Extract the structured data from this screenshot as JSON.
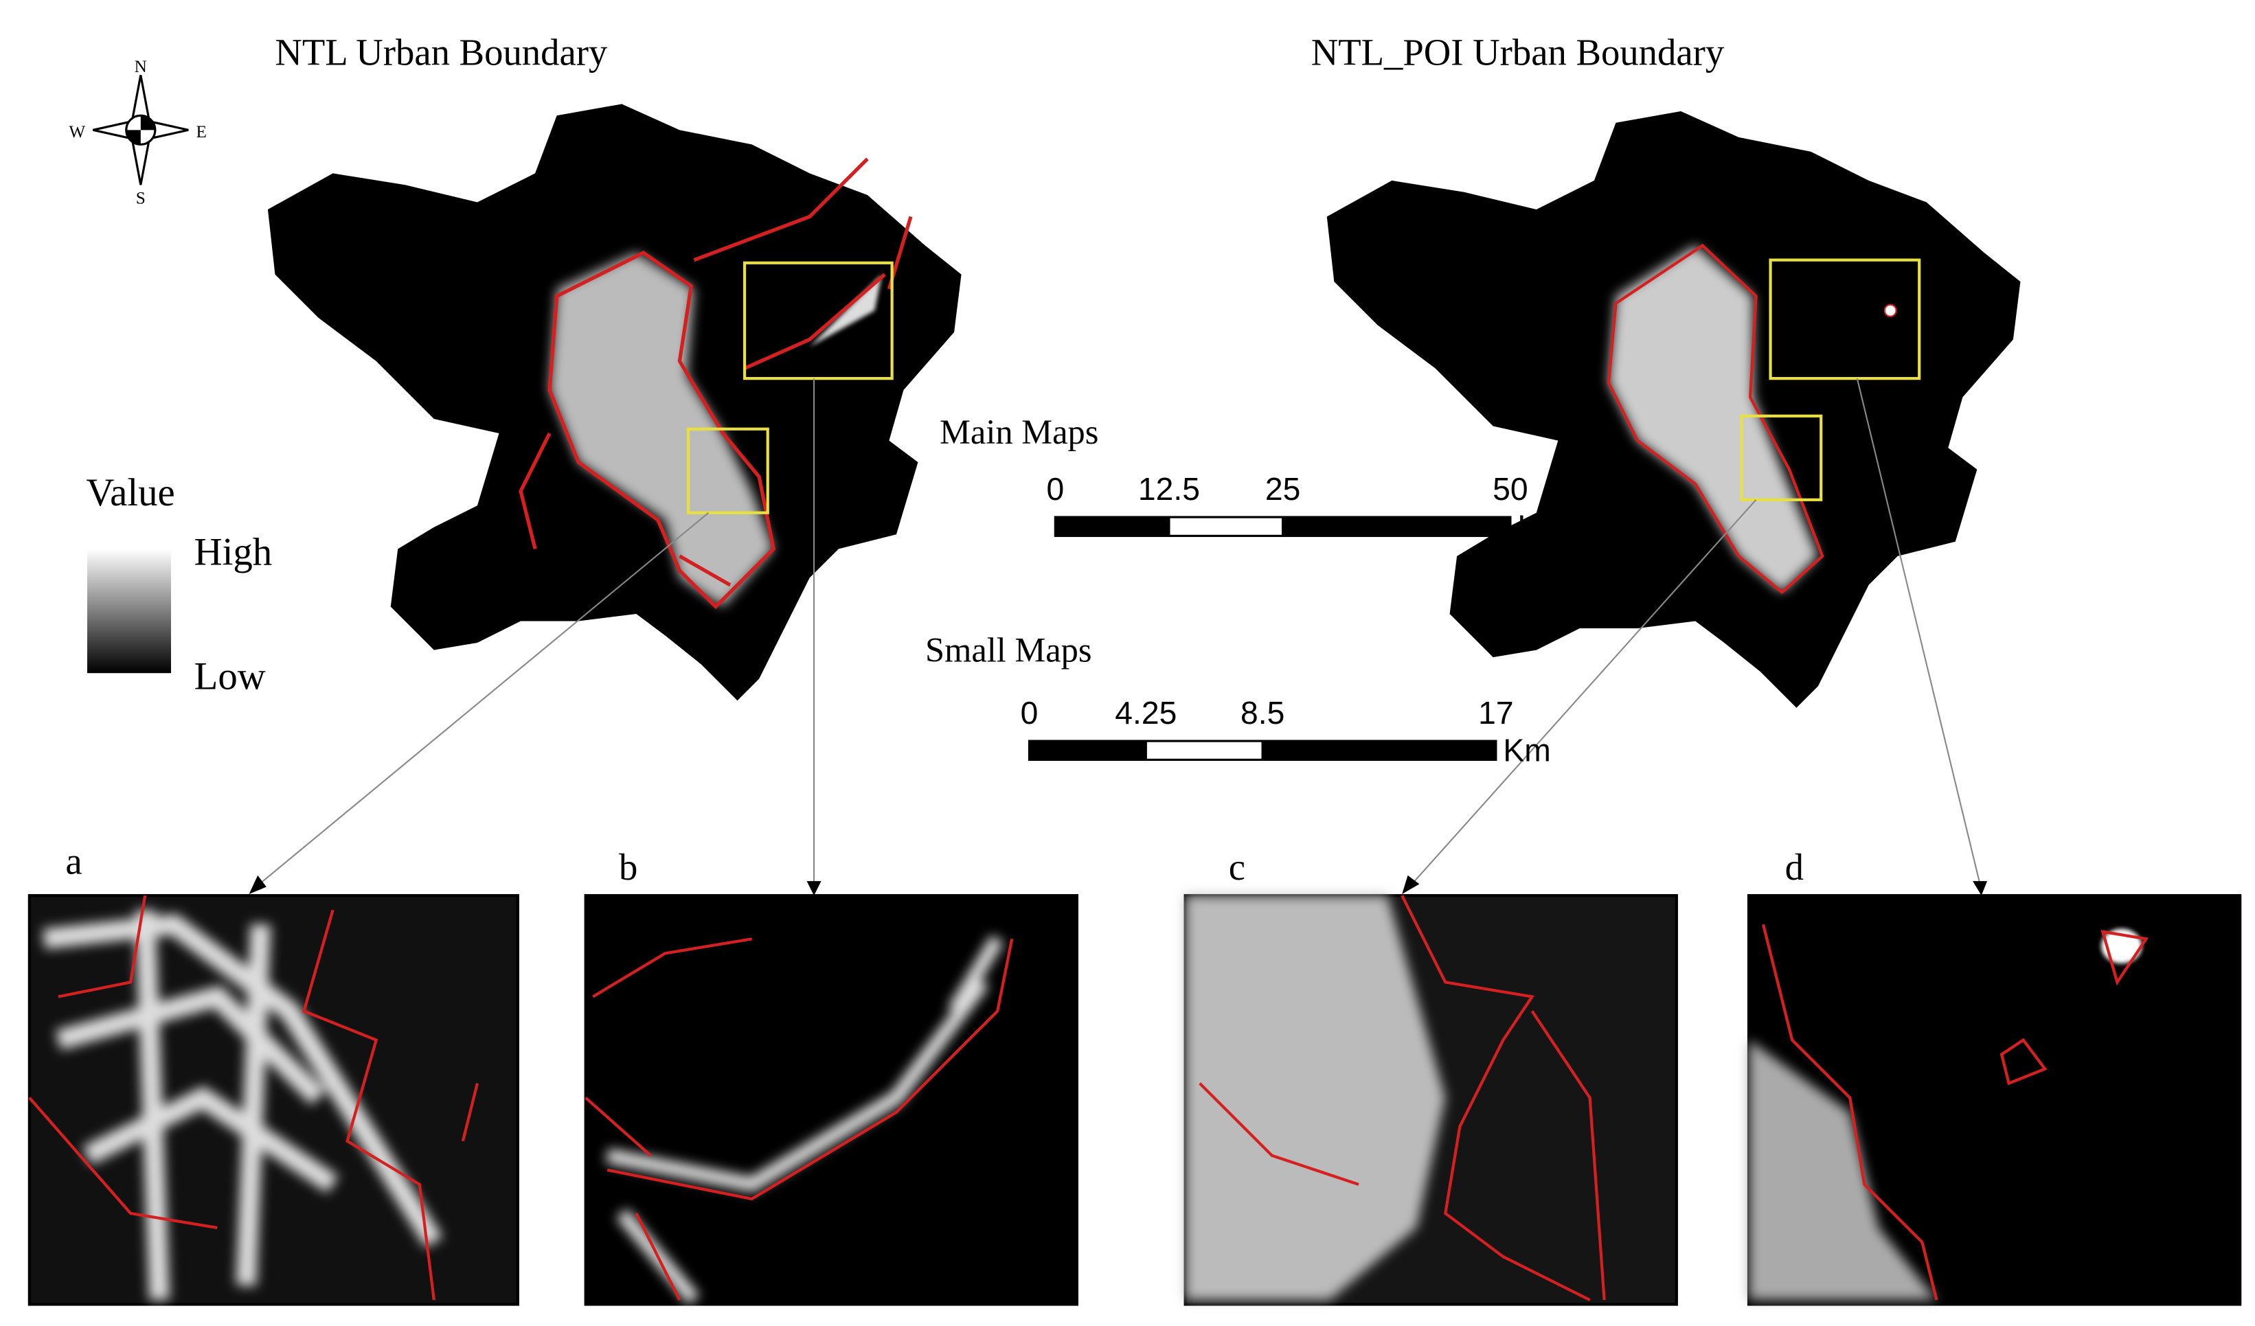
{
  "titles": [
    "NTL Urban Boundary",
    "NTL_POI Urban Boundary"
  ],
  "compass": {
    "n": "N",
    "s": "S",
    "e": "E",
    "w": "W"
  },
  "legend": {
    "title": "Value",
    "high": "High",
    "low": "Low"
  },
  "scale_bars": [
    {
      "label": "Main Maps",
      "ticks": [
        0,
        12.5,
        25,
        50
      ],
      "unit": "Km"
    },
    {
      "label": "Small Maps",
      "ticks": [
        0,
        4.25,
        8.5,
        17
      ],
      "unit": "Km"
    }
  ],
  "panels": [
    "a",
    "b",
    "c",
    "d"
  ]
}
